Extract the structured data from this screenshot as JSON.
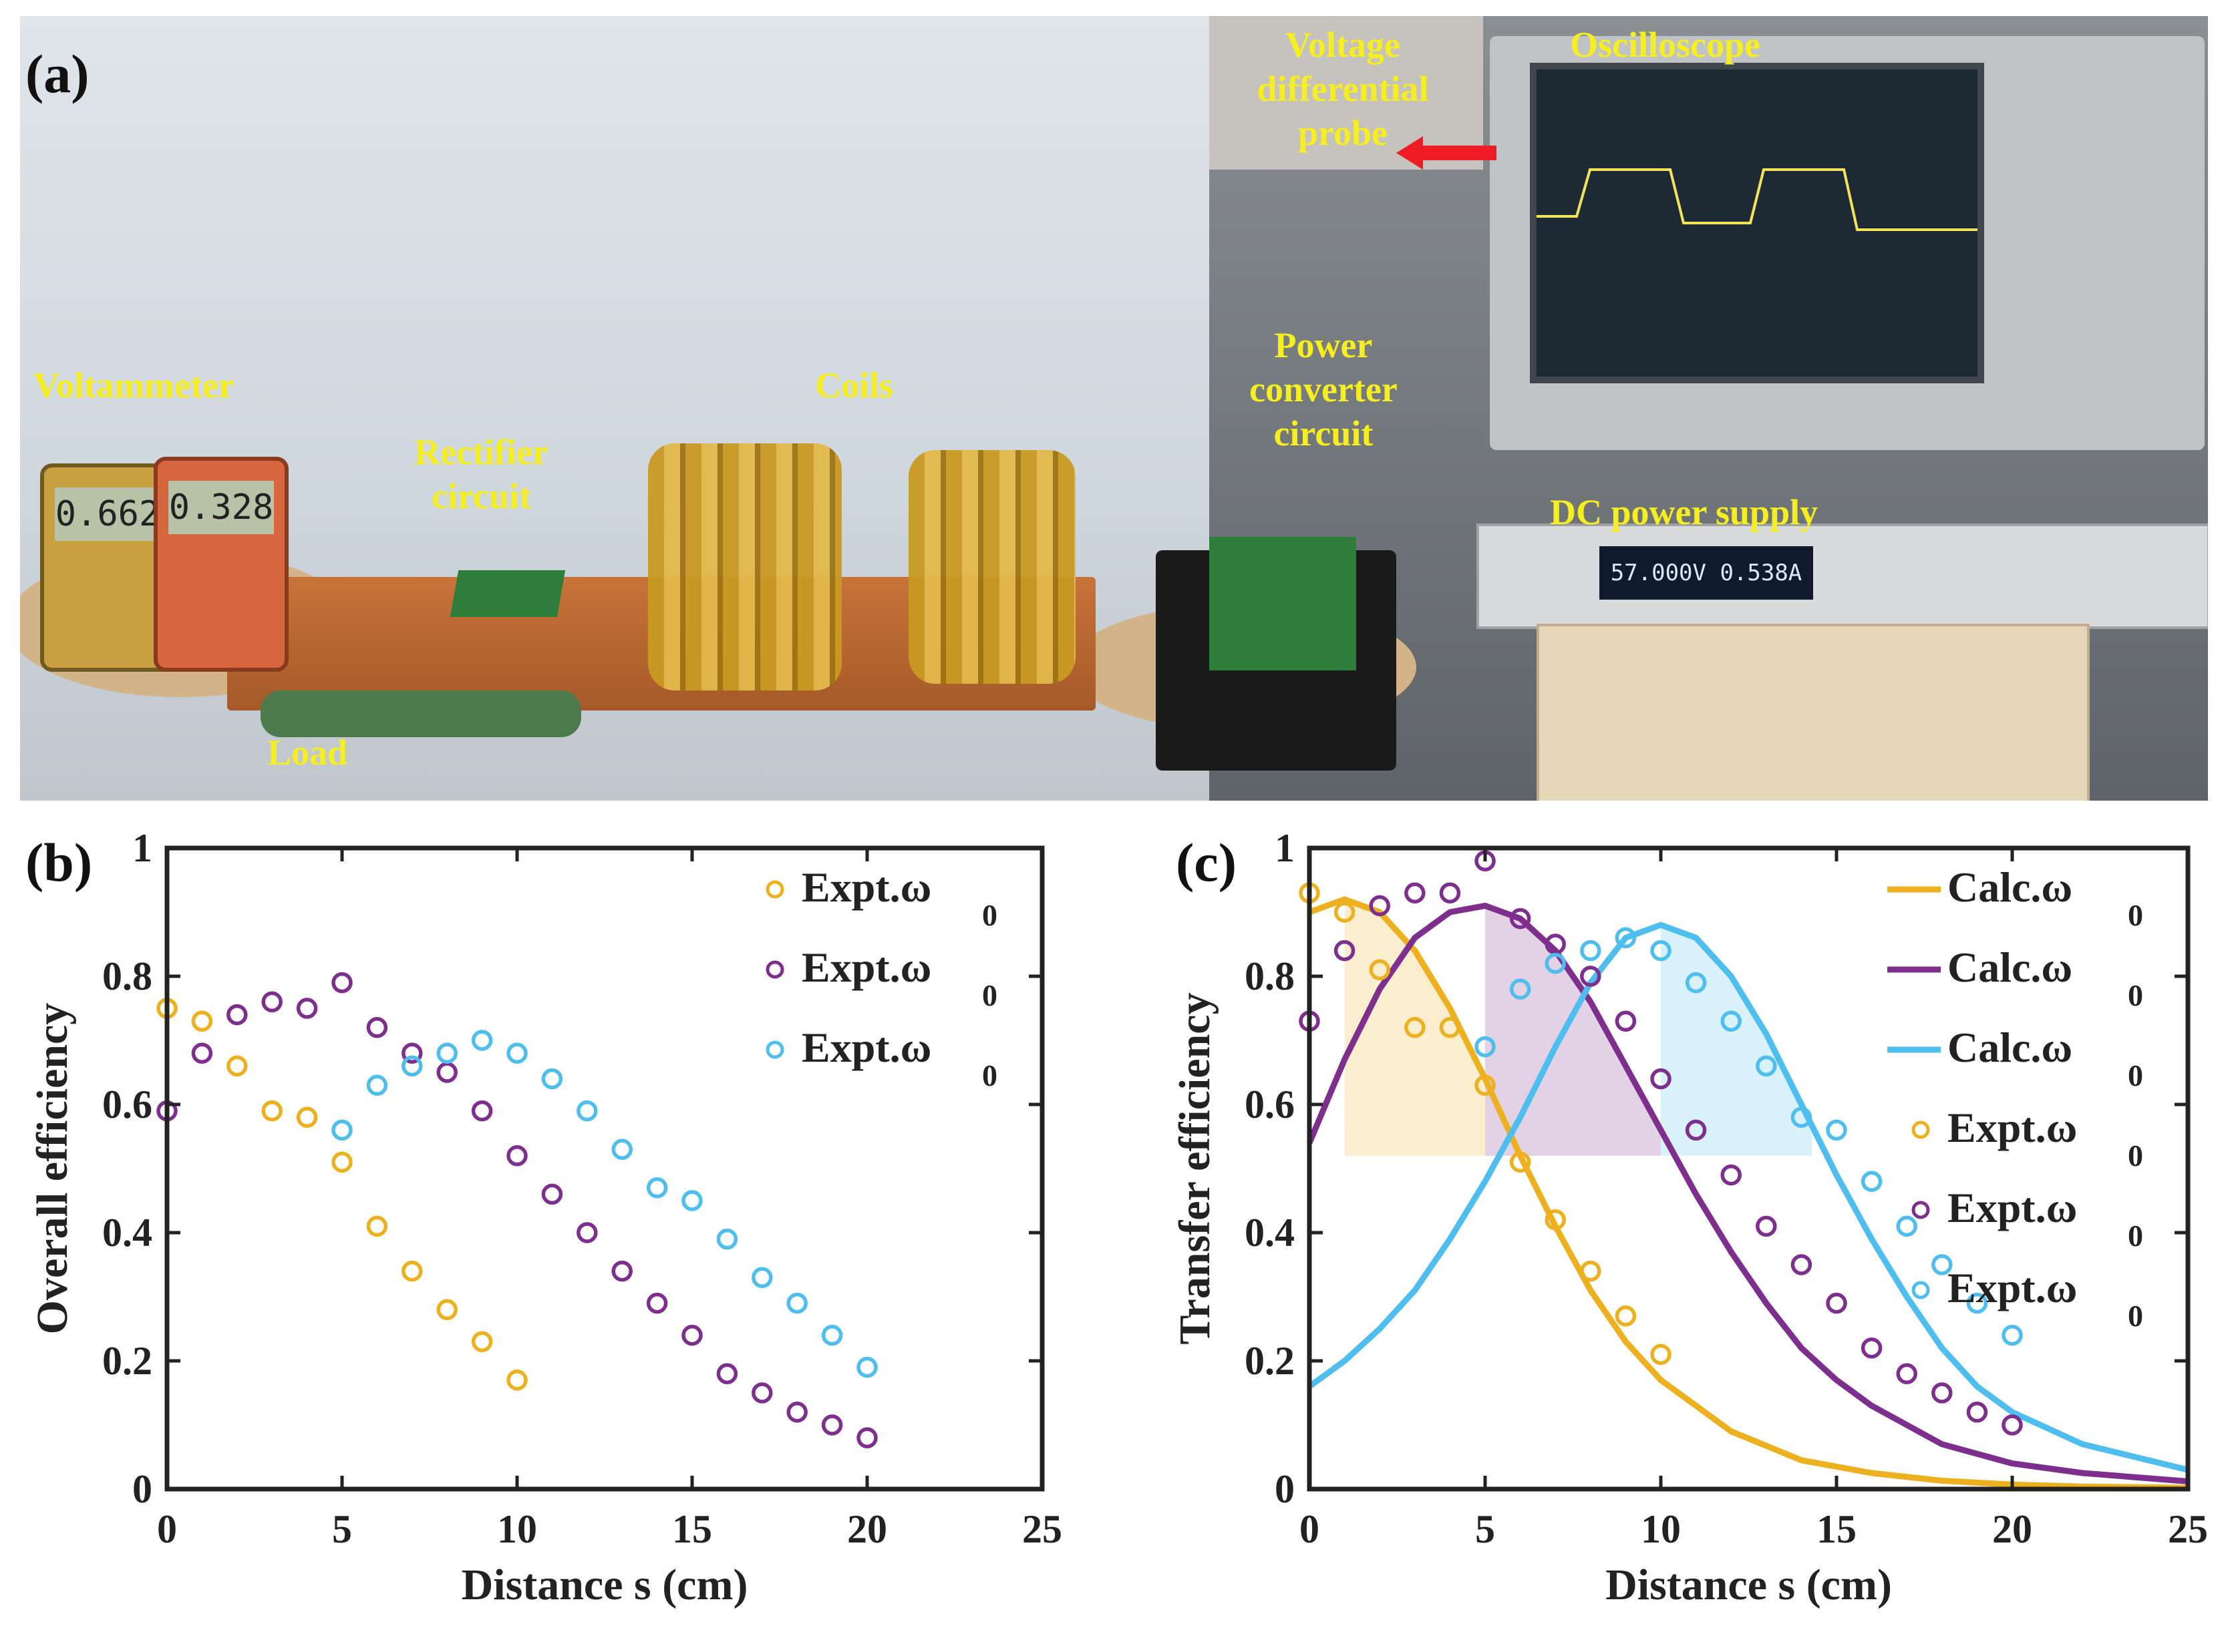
{
  "panels": {
    "a": "(a)",
    "b": "(b)",
    "c": "(c)"
  },
  "photo_labels": {
    "voltammeter": "Voltammeter",
    "rectifier": "Rectifier\ncircuit",
    "coils": "Coils",
    "load": "Load",
    "probe": "Voltage\ndifferential\nprobe",
    "oscilloscope": "Oscilloscope",
    "converter": "Power\nconverter\ncircuit",
    "dc_supply": "DC power supply",
    "meter1_reading": "0.662",
    "meter2_reading": "0.328",
    "psu_readout": "57.000V  0.538A"
  },
  "colors": {
    "orange": "#edb120",
    "purple": "#7e2f8e",
    "blue": "#4dbeee",
    "label_yellow": "#f6ee1f",
    "arrow_red": "#ee1c24"
  },
  "chart_data": [
    {
      "type": "scatter",
      "xlabel": "Distance s (cm)",
      "ylabel": "Overall efficiency",
      "xlim": [
        0,
        25
      ],
      "ylim": [
        0,
        1
      ],
      "xticks": [
        0,
        5,
        10,
        15,
        20,
        25
      ],
      "yticks": [
        0,
        0.2,
        0.4,
        0.6,
        0.8,
        1
      ],
      "ytick_labels": [
        "0",
        "0.2",
        "0.4",
        "0.6",
        "0.8",
        "1"
      ],
      "legend_position": "top-right",
      "series": [
        {
          "name": "Expt.ω",
          "sub": "0",
          "color": "#edb120",
          "x": [
            0,
            1,
            2,
            3,
            4,
            5,
            6,
            7,
            8,
            9,
            10
          ],
          "y": [
            0.75,
            0.73,
            0.66,
            0.59,
            0.58,
            0.51,
            0.41,
            0.34,
            0.28,
            0.23,
            0.17
          ]
        },
        {
          "name": "Expt.ω",
          "sub": "0",
          "color": "#7e2f8e",
          "x": [
            0,
            1,
            2,
            3,
            4,
            5,
            6,
            7,
            8,
            9,
            10,
            11,
            12,
            13,
            14,
            15,
            16,
            17,
            18,
            19,
            20
          ],
          "y": [
            0.59,
            0.68,
            0.74,
            0.76,
            0.75,
            0.79,
            0.72,
            0.68,
            0.65,
            0.59,
            0.52,
            0.46,
            0.4,
            0.34,
            0.29,
            0.24,
            0.18,
            0.15,
            0.12,
            0.1,
            0.08
          ]
        },
        {
          "name": "Expt.ω",
          "sub": "0",
          "color": "#4dbeee",
          "x": [
            5,
            6,
            7,
            8,
            9,
            10,
            11,
            12,
            13,
            14,
            15,
            16,
            17,
            18,
            19,
            20
          ],
          "y": [
            0.56,
            0.63,
            0.66,
            0.68,
            0.7,
            0.68,
            0.64,
            0.59,
            0.53,
            0.47,
            0.45,
            0.39,
            0.33,
            0.29,
            0.24,
            0.19
          ]
        }
      ]
    },
    {
      "type": "line",
      "xlabel": "Distance s (cm)",
      "ylabel": "Transfer efficiency",
      "xlim": [
        0,
        25
      ],
      "ylim": [
        0,
        1
      ],
      "xticks": [
        0,
        5,
        10,
        15,
        20,
        25
      ],
      "yticks": [
        0,
        0.2,
        0.4,
        0.6,
        0.8,
        1
      ],
      "ytick_labels": [
        "0",
        "0.2",
        "0.4",
        "0.6",
        "0.8",
        "1"
      ],
      "legend_position": "top-right",
      "lines": [
        {
          "name": "Calc.ω",
          "sub": "0",
          "color": "#edb120",
          "x": [
            0,
            1,
            2,
            3,
            4,
            5,
            6,
            7,
            8,
            9,
            10,
            12,
            14,
            16,
            18,
            20,
            22,
            25
          ],
          "y": [
            0.9,
            0.92,
            0.9,
            0.84,
            0.75,
            0.64,
            0.52,
            0.41,
            0.31,
            0.23,
            0.17,
            0.09,
            0.045,
            0.025,
            0.013,
            0.007,
            0.004,
            0.002
          ]
        },
        {
          "name": "Calc.ω",
          "sub": "0",
          "color": "#7e2f8e",
          "x": [
            0,
            1,
            2,
            3,
            4,
            5,
            6,
            7,
            8,
            9,
            10,
            11,
            12,
            13,
            14,
            15,
            16,
            18,
            20,
            22,
            25
          ],
          "y": [
            0.54,
            0.67,
            0.78,
            0.86,
            0.9,
            0.91,
            0.89,
            0.84,
            0.76,
            0.66,
            0.56,
            0.46,
            0.37,
            0.29,
            0.22,
            0.17,
            0.13,
            0.07,
            0.04,
            0.025,
            0.012
          ]
        },
        {
          "name": "Calc.ω",
          "sub": "0",
          "color": "#4dbeee",
          "x": [
            0,
            1,
            2,
            3,
            4,
            5,
            6,
            7,
            8,
            9,
            10,
            11,
            12,
            13,
            14,
            15,
            16,
            17,
            18,
            19,
            20,
            22,
            25
          ],
          "y": [
            0.16,
            0.2,
            0.25,
            0.31,
            0.39,
            0.48,
            0.58,
            0.69,
            0.79,
            0.86,
            0.88,
            0.86,
            0.8,
            0.71,
            0.6,
            0.49,
            0.39,
            0.3,
            0.22,
            0.16,
            0.12,
            0.07,
            0.03
          ]
        }
      ],
      "shaded_regions": [
        {
          "color": "#edb120",
          "x0": 1,
          "x1": 5,
          "y0": 0.52
        },
        {
          "color": "#7e2f8e",
          "x0": 5,
          "x1": 10,
          "y0": 0.52
        },
        {
          "color": "#4dbeee",
          "x0": 10,
          "x1": 14.3,
          "y0": 0.52
        }
      ],
      "series": [
        {
          "name": "Expt.ω",
          "sub": "0",
          "color": "#edb120",
          "x": [
            0,
            1,
            2,
            3,
            4,
            5,
            6,
            7,
            8,
            9,
            10
          ],
          "y": [
            0.93,
            0.9,
            0.81,
            0.72,
            0.72,
            0.63,
            0.51,
            0.42,
            0.34,
            0.27,
            0.21
          ]
        },
        {
          "name": "Expt.ω",
          "sub": "0",
          "color": "#7e2f8e",
          "x": [
            0,
            1,
            2,
            3,
            4,
            5,
            6,
            7,
            8,
            9,
            10,
            11,
            12,
            13,
            14,
            15,
            16,
            17,
            18,
            19,
            20
          ],
          "y": [
            0.73,
            0.84,
            0.91,
            0.93,
            0.93,
            0.98,
            0.89,
            0.85,
            0.8,
            0.73,
            0.64,
            0.56,
            0.49,
            0.41,
            0.35,
            0.29,
            0.22,
            0.18,
            0.15,
            0.12,
            0.1
          ]
        },
        {
          "name": "Expt.ω",
          "sub": "0",
          "color": "#4dbeee",
          "x": [
            5,
            6,
            7,
            8,
            9,
            10,
            11,
            12,
            13,
            14,
            15,
            16,
            17,
            18,
            19,
            20
          ],
          "y": [
            0.69,
            0.78,
            0.82,
            0.84,
            0.86,
            0.84,
            0.79,
            0.73,
            0.66,
            0.58,
            0.56,
            0.48,
            0.41,
            0.35,
            0.29,
            0.24
          ]
        }
      ]
    }
  ]
}
